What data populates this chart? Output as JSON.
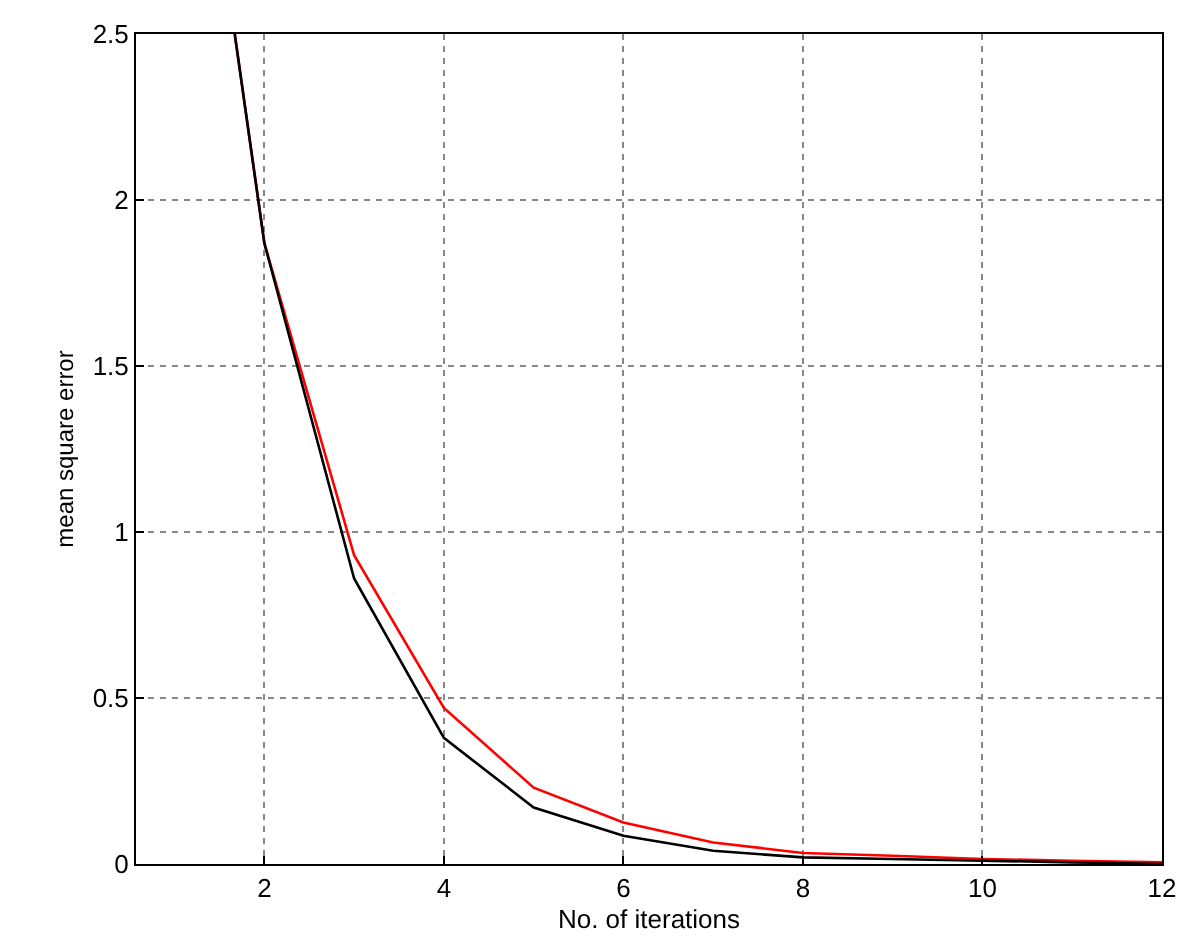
{
  "chart_data": {
    "type": "line",
    "xlabel": "No. of iterations",
    "ylabel": "mean square error",
    "xlim": [
      0.57,
      12
    ],
    "ylim": [
      0,
      2.5
    ],
    "xticks": [
      2,
      4,
      6,
      8,
      10,
      12
    ],
    "yticks": [
      0,
      0.5,
      1,
      1.5,
      2,
      2.5
    ],
    "grid": true,
    "marker": "none",
    "line_style": "solid",
    "series": [
      {
        "color": "#ff0000",
        "x": [
          1.67,
          2,
          3,
          4,
          5,
          6,
          7,
          8,
          9,
          10,
          11,
          12
        ],
        "values": [
          2.5,
          1.87,
          0.93,
          0.47,
          0.23,
          0.125,
          0.065,
          0.033,
          0.025,
          0.015,
          0.01,
          0.005
        ]
      },
      {
        "color": "#000000",
        "x": [
          1.67,
          2,
          3,
          4,
          5,
          6,
          7,
          8,
          9,
          10,
          11,
          12
        ],
        "values": [
          2.5,
          1.87,
          0.86,
          0.38,
          0.17,
          0.085,
          0.04,
          0.02,
          0.015,
          0.01,
          0.005,
          0
        ]
      }
    ]
  }
}
